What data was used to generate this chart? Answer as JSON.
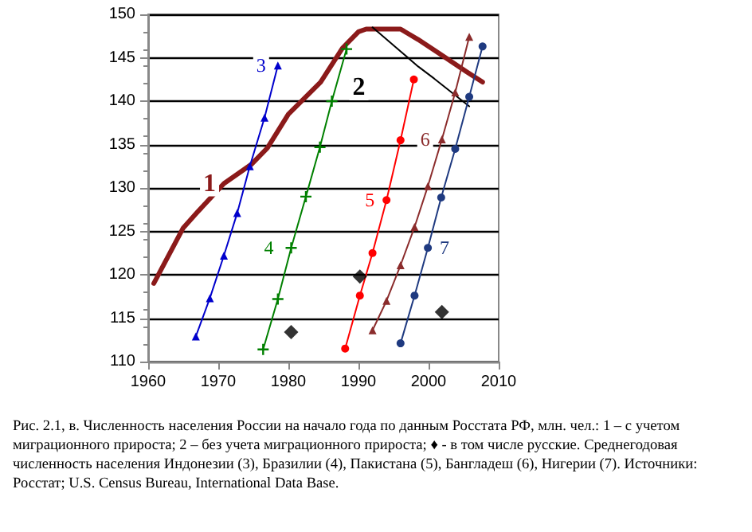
{
  "chart_data": {
    "type": "line",
    "xlim": [
      1960,
      2010
    ],
    "xticks": [
      1960,
      1970,
      1980,
      1990,
      2000,
      2010
    ],
    "ylim": [
      110,
      150
    ],
    "yticks": [
      110,
      115,
      120,
      125,
      130,
      135,
      140,
      145,
      150
    ],
    "grid": "y",
    "line_style": "solid",
    "annotations": [
      "Рис. 2.1, в. Численность населения России на начало года по данным Росстата РФ, млн. чел.: 1 – с учетом миграционного прироста; 2 – без учета миграционного прироста; ♦ - в том числе русские. Среднегодовая численность населения Индонезии (3), Бразилии (4), Пакистана (5), Бангладеш (6), Нигерии (7). Источники: Росстат; U.S. Census Bureau, International Data Base."
    ],
    "series": [
      {
        "name": "1",
        "color": "#8b1a1a",
        "marker": "none",
        "x": [
          1960.8,
          1965,
          1967,
          1970.8,
          1974.7,
          1977,
          1980,
          1984.6,
          1987.7,
          1990,
          1991.1,
          1996,
          1998.5,
          2001.5,
          2005.4,
          2007.7
        ],
        "values": [
          119,
          125.4,
          127.2,
          130.5,
          132.7,
          134.6,
          138.5,
          142.2,
          146.1,
          148,
          148.3,
          148.3,
          147.1,
          145.5,
          143.4,
          142.2
        ]
      },
      {
        "name": "2",
        "color": "#000000",
        "marker": "none",
        "x": [
          1992,
          1996.2,
          1998.5,
          2000.8,
          2005.8
        ],
        "values": [
          148.5,
          145.6,
          144,
          142.6,
          139.4
        ]
      },
      {
        "name": "3",
        "color": "#0000cc",
        "marker": "triangle",
        "x": [
          1966.8,
          1968.8,
          1970.8,
          1972.7,
          1974.5,
          1976.6,
          1978.5
        ],
        "values": [
          112.9,
          117.3,
          122.2,
          127.1,
          132.5,
          138.1,
          144.1
        ]
      },
      {
        "name": "4",
        "color": "#008000",
        "marker": "cross",
        "x": [
          1976.4,
          1978.5,
          1980.4,
          1982.5,
          1984.5,
          1986.2,
          1988.3
        ],
        "values": [
          111.4,
          117.2,
          123.1,
          129,
          134.7,
          140,
          146
        ]
      },
      {
        "name": "5",
        "color": "#ff0000",
        "marker": "circle",
        "x": [
          1988.1,
          1990.2,
          1992,
          1994,
          1996,
          1997.9
        ],
        "values": [
          111.5,
          117.6,
          122.5,
          128.6,
          135.5,
          142.5
        ]
      },
      {
        "name": "6",
        "color": "#8b2c2c",
        "marker": "triangle",
        "x": [
          1992,
          1994,
          1996,
          1998,
          1999.9,
          2001.9,
          2003.8,
          2005.8
        ],
        "values": [
          113.6,
          117,
          121.1,
          125.5,
          130.2,
          135.6,
          141,
          147.4
        ]
      },
      {
        "name": "7",
        "color": "#1f3a80",
        "marker": "circle",
        "x": [
          1996,
          1998,
          1999.9,
          2001.8,
          2003.8,
          2005.8,
          2007.7
        ],
        "values": [
          112.1,
          117.6,
          123.1,
          128.9,
          134.5,
          140.5,
          146.3
        ]
      },
      {
        "type": "scatter",
        "color": "#000000",
        "marker": "diamond",
        "x": [
          1980.4,
          1990.2,
          2001.9
        ],
        "values": [
          113.4,
          119.8,
          115.7
        ]
      }
    ]
  }
}
